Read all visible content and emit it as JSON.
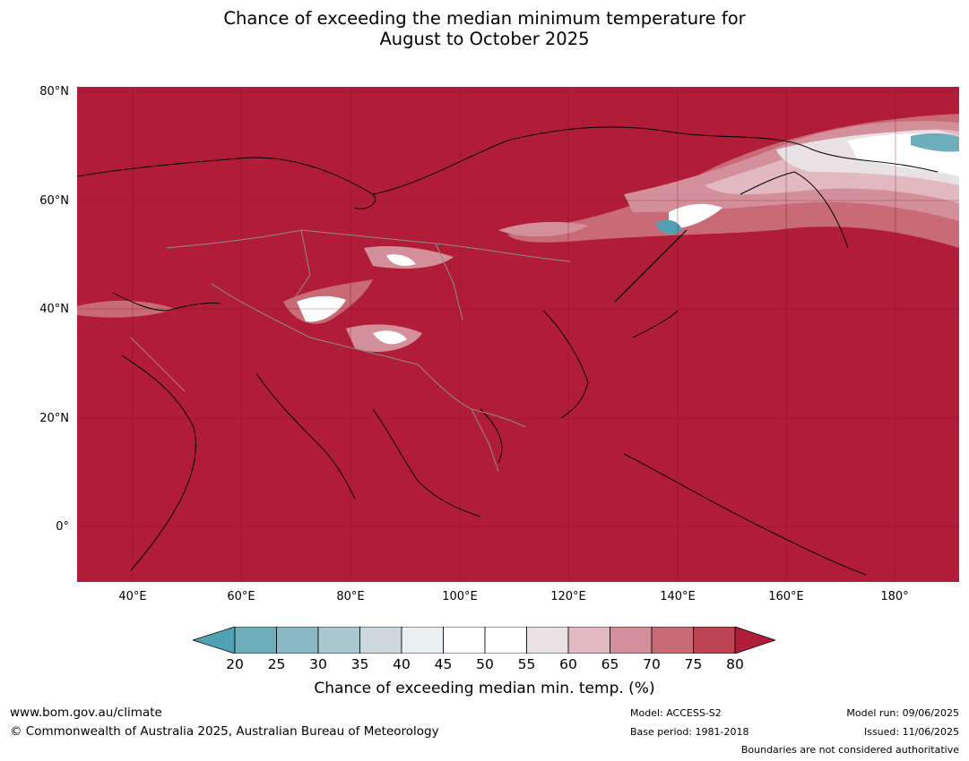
{
  "title_line1": "Chance of exceeding the median minimum temperature for",
  "title_line2": "August to October 2025",
  "map": {
    "lat_labels": [
      "80°N",
      "60°N",
      "40°N",
      "20°N",
      "0°"
    ],
    "lon_labels": [
      "40°E",
      "60°E",
      "80°E",
      "100°E",
      "120°E",
      "140°E",
      "160°E",
      "180°"
    ],
    "dominant_color": "#b11c38",
    "region": "Asia"
  },
  "colorbar": {
    "ticks": [
      "20",
      "25",
      "30",
      "35",
      "40",
      "45",
      "50",
      "55",
      "60",
      "65",
      "70",
      "75",
      "80"
    ],
    "colors": [
      "#4fa1b3",
      "#6eaebb",
      "#8ab9c5",
      "#a8c8cd",
      "#cdd8dc",
      "#eaf0f2",
      "#ffffff",
      "#ffffff",
      "#e8e2e4",
      "#e2b9c0",
      "#d4909a",
      "#c96a77",
      "#bc4553",
      "#b11c38"
    ],
    "label": "Chance of exceeding median min. temp. (%)"
  },
  "footer": {
    "website": "www.bom.gov.au/climate",
    "copyright": "© Commonwealth of Australia 2025, Australian Bureau of Meteorology",
    "model": "Model: ACCESS-S2",
    "base_period": "Base period: 1981-2018",
    "model_run": "Model run: 09/06/2025",
    "issued": "Issued: 11/06/2025",
    "disclaimer": "Boundaries are not considered authoritative"
  }
}
